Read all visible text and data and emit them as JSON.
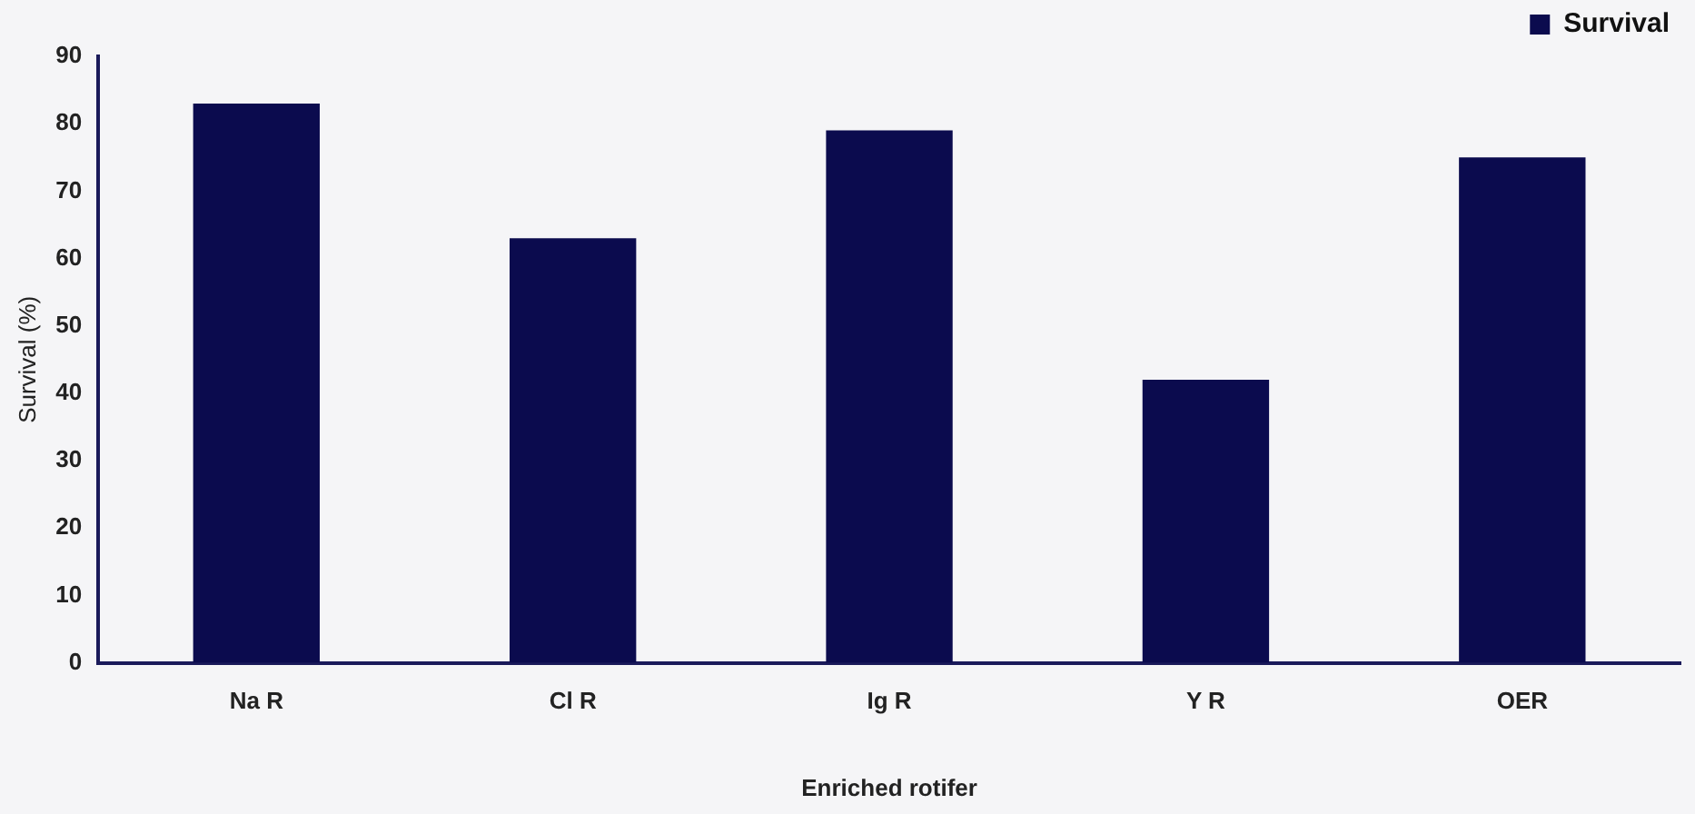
{
  "chart_data": {
    "type": "bar",
    "xlabel": "Enriched rotifer",
    "ylabel": "Survival (%)",
    "categories": [
      "Na R",
      "Cl R",
      "Ig R",
      "Y R",
      "OER"
    ],
    "series": [
      {
        "name": "Survival",
        "color": "#0b0b4e",
        "values": [
          83,
          63,
          79,
          42,
          75
        ]
      }
    ],
    "ylim": [
      0,
      90
    ],
    "yticks": [
      0,
      10,
      20,
      30,
      40,
      50,
      60,
      70,
      80,
      90
    ],
    "grid": false,
    "legend": "top right"
  }
}
